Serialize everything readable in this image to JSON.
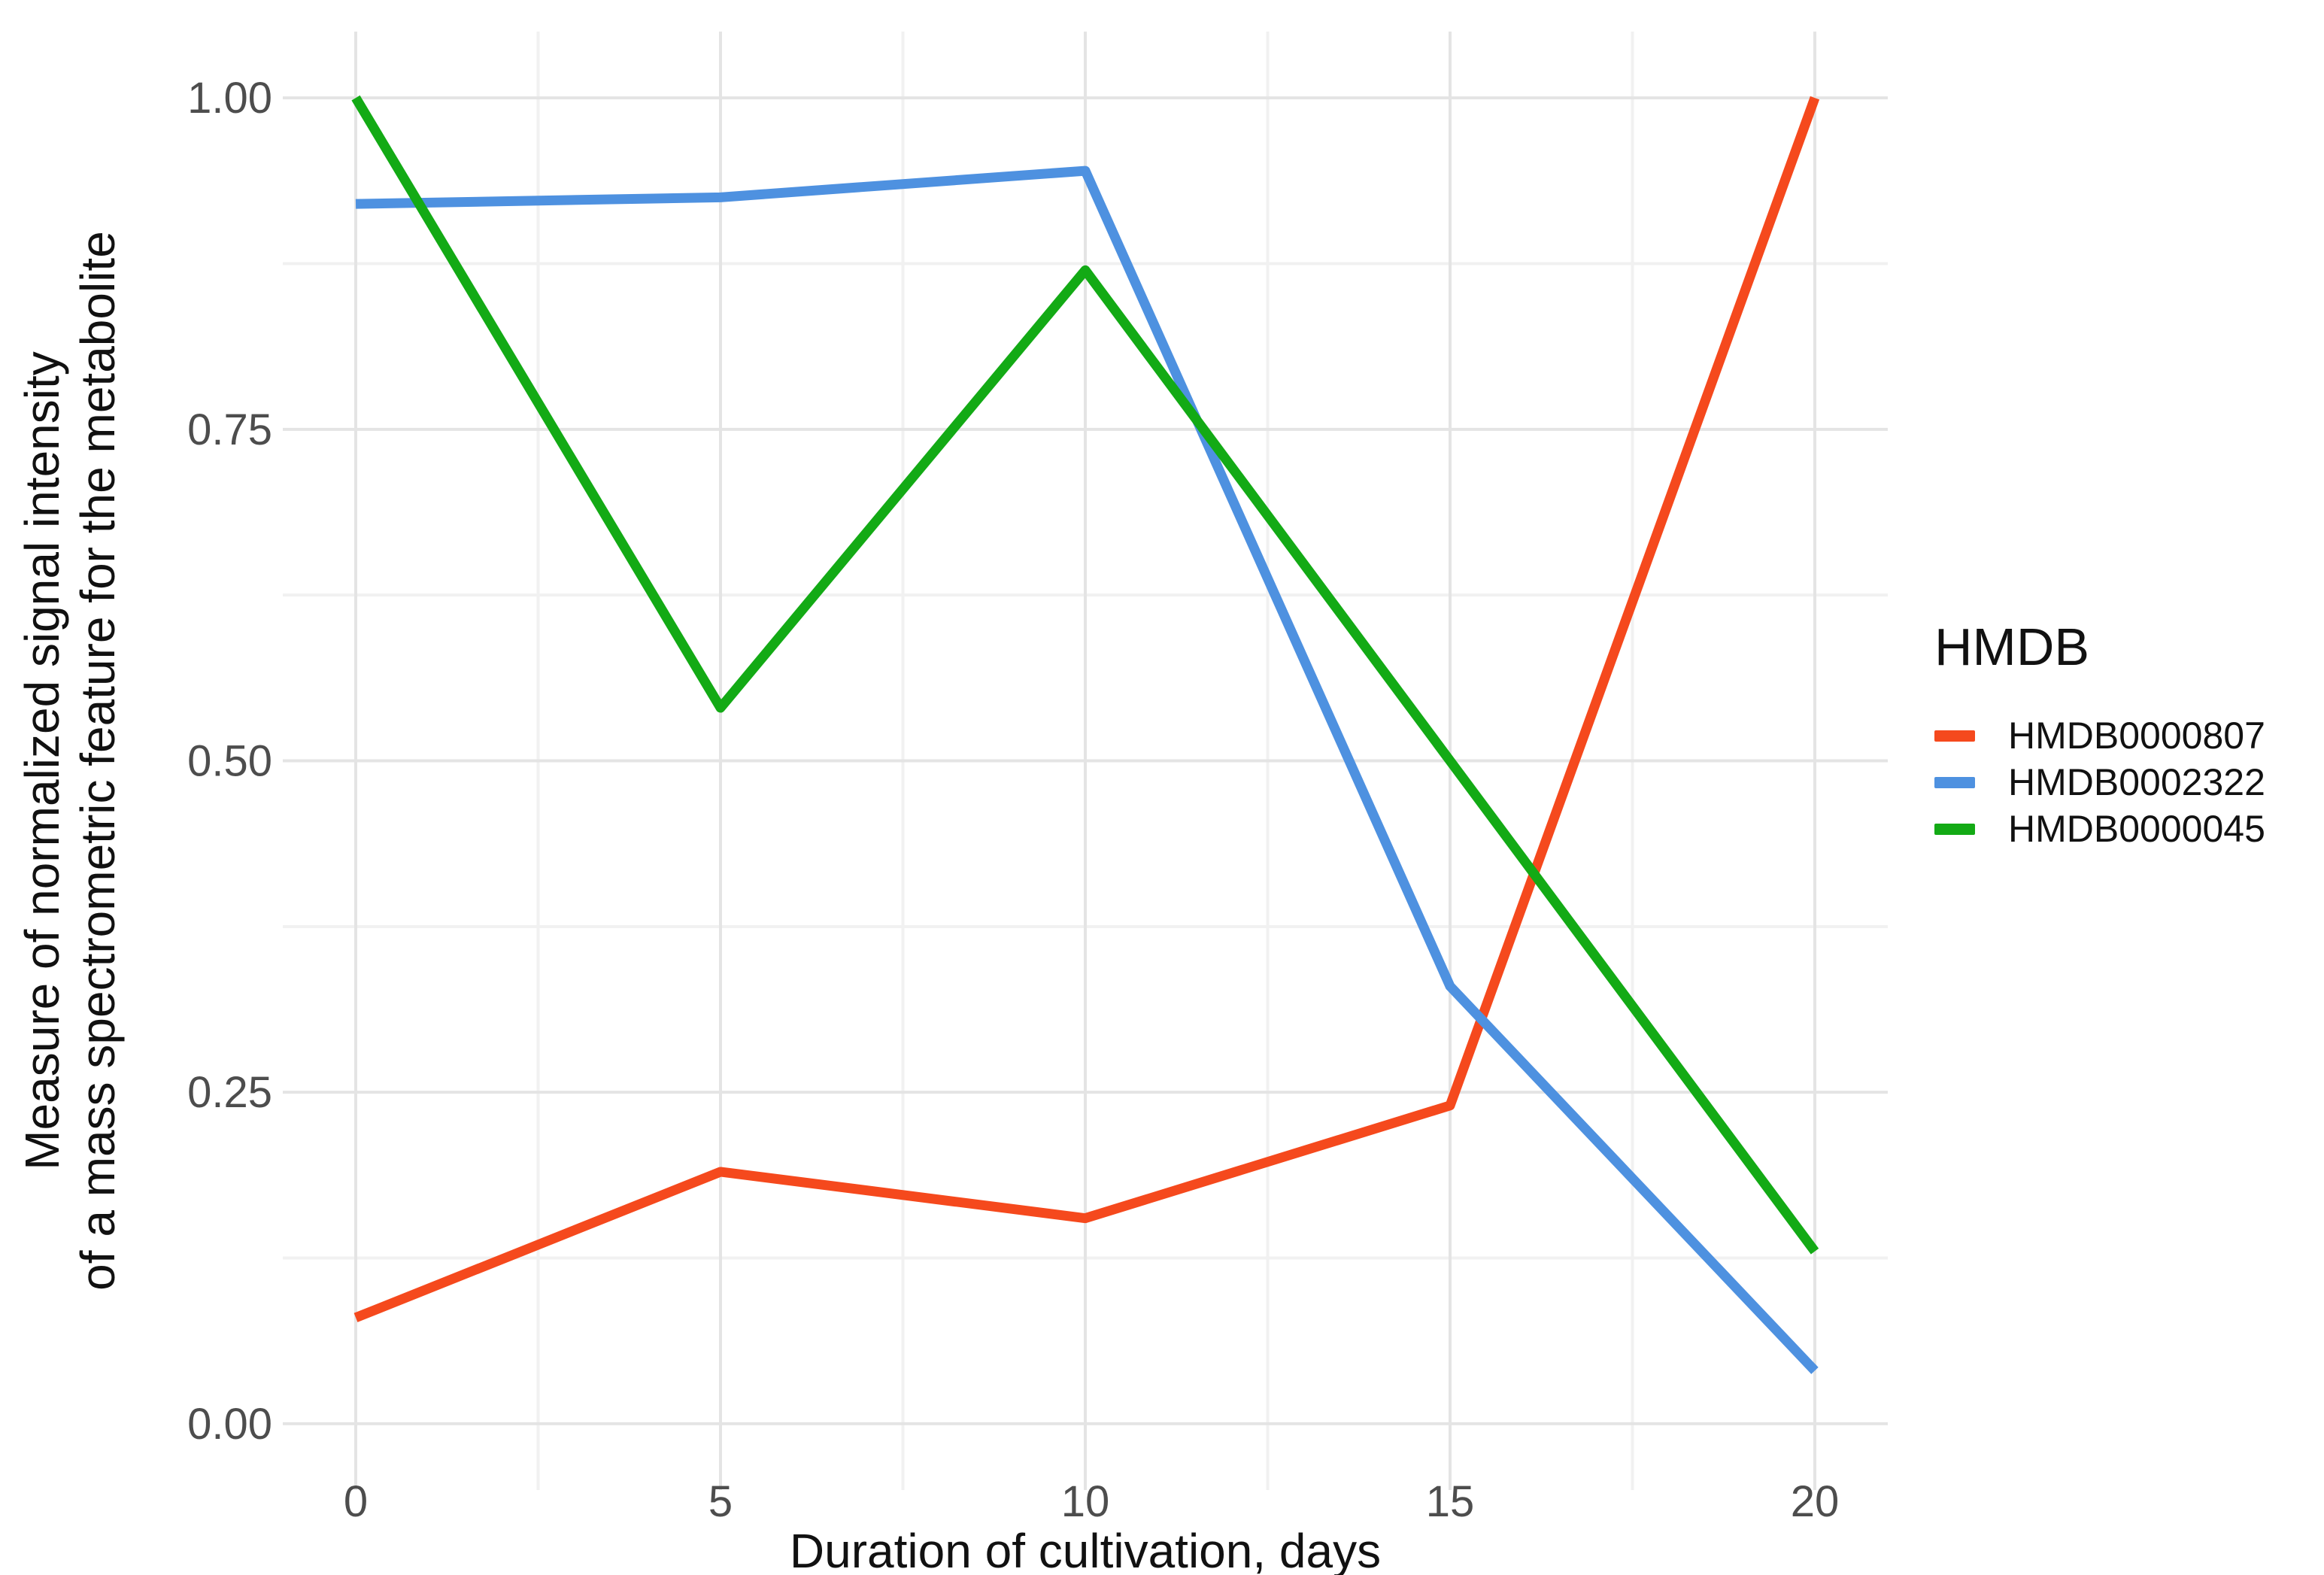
{
  "figure": {
    "background": "#FFFFFF"
  },
  "chart_data": {
    "type": "line",
    "title": "",
    "xlabel": "Duration of cultivation, days",
    "ylabel_lines": [
      "Measure of normalized signal intensity",
      "of a mass spectrometric feature for the metabolite"
    ],
    "x": [
      0,
      5,
      10,
      15,
      20
    ],
    "xtick_labels": [
      "0",
      "5",
      "10",
      "15",
      "20"
    ],
    "ytick_values": [
      0,
      0.25,
      0.5,
      0.75,
      1
    ],
    "ytick_labels": [
      "0.00",
      "0.25",
      "0.50",
      "0.75",
      "1.00"
    ],
    "xlim": [
      -1,
      21
    ],
    "ylim": [
      -0.05,
      1.05
    ],
    "grid": {
      "show_major": true,
      "show_minor": true,
      "major_color": "#E4E4E4",
      "minor_color": "#F1F1F1",
      "minor_x": [
        2.5,
        7.5,
        12.5,
        17.5
      ],
      "minor_y": [
        0.125,
        0.375,
        0.625,
        0.875
      ]
    },
    "axis_text_color": "#4D4D4D",
    "axis_title_color": "#111111",
    "legend": {
      "title": "HMDB",
      "position": "right"
    },
    "series": [
      {
        "name": "HMDB0000807",
        "color": "#F5491D",
        "values": [
          0.08,
          0.19,
          0.155,
          0.24,
          1.0
        ]
      },
      {
        "name": "HMDB0002322",
        "color": "#4E91E0",
        "values": [
          0.92,
          0.925,
          0.945,
          0.33,
          0.04
        ]
      },
      {
        "name": "HMDB0000045",
        "color": "#13AA15",
        "values": [
          1.0,
          0.54,
          0.87,
          0.5,
          0.13
        ]
      }
    ]
  }
}
